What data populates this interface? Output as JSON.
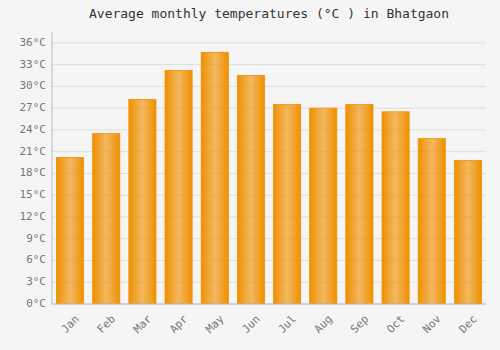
{
  "chart_data": {
    "type": "bar",
    "title": "Average monthly temperatures (°C ) in Bhatgaon",
    "categories": [
      "Jan",
      "Feb",
      "Mar",
      "Apr",
      "May",
      "Jun",
      "Jul",
      "Aug",
      "Sep",
      "Oct",
      "Nov",
      "Dec"
    ],
    "values": [
      20.2,
      23.5,
      28.2,
      32.2,
      34.7,
      31.5,
      27.5,
      27.0,
      27.5,
      26.5,
      22.8,
      19.8
    ],
    "color": "#F09000",
    "ylim": [
      0,
      37.5
    ],
    "yticks": [
      {
        "value": 0,
        "label": "0°C"
      },
      {
        "value": 3,
        "label": "3°C"
      },
      {
        "value": 6,
        "label": "6°C"
      },
      {
        "value": 9,
        "label": "9°C"
      },
      {
        "value": 12,
        "label": "12°C"
      },
      {
        "value": 15,
        "label": "15°C"
      },
      {
        "value": 18,
        "label": "18°C"
      },
      {
        "value": 21,
        "label": "21°C"
      },
      {
        "value": 24,
        "label": "24°C"
      },
      {
        "value": 27,
        "label": "27°C"
      },
      {
        "value": 30,
        "label": "30°C"
      },
      {
        "value": 33,
        "label": "33°C"
      },
      {
        "value": 36,
        "label": "36°C"
      }
    ],
    "grid": true
  }
}
